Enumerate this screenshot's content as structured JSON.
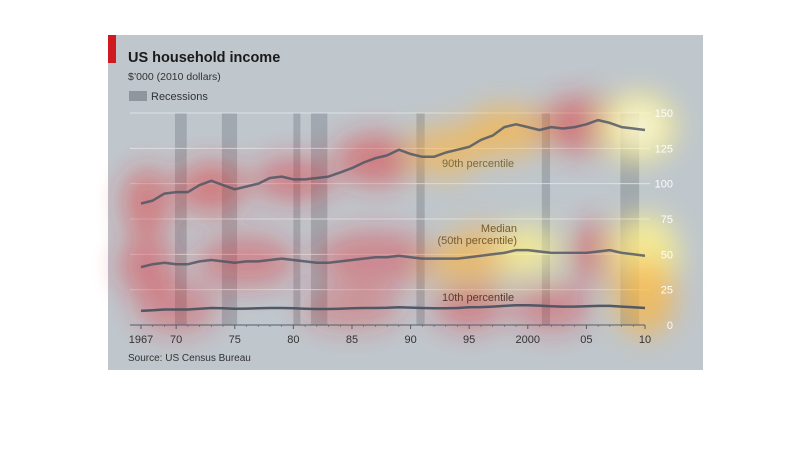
{
  "header": {
    "title": "US household income",
    "subtitle": "$’000 (2010 dollars)",
    "legend_label": "Recessions",
    "source": "Source: US Census Bureau"
  },
  "colors": {
    "background": "#bfc6cc",
    "accent_red": "#cf1b20",
    "gridline": "#e6e9ec",
    "recession_band": "#949ba3",
    "line": "#4a5361",
    "heat_hot": "#fff48a",
    "heat_warm": "#ffb43a",
    "heat_red": "#e3242b"
  },
  "chart_data": {
    "type": "line",
    "x": [
      1967,
      1968,
      1969,
      1970,
      1971,
      1972,
      1973,
      1974,
      1975,
      1976,
      1977,
      1978,
      1979,
      1980,
      1981,
      1982,
      1983,
      1984,
      1985,
      1986,
      1987,
      1988,
      1989,
      1990,
      1991,
      1992,
      1993,
      1994,
      1995,
      1996,
      1997,
      1998,
      1999,
      2000,
      2001,
      2002,
      2003,
      2004,
      2005,
      2006,
      2007,
      2008,
      2009,
      2010
    ],
    "xlim": [
      1966,
      2011
    ],
    "ylim": [
      0,
      150
    ],
    "y_ticks": [
      0,
      25,
      50,
      75,
      100,
      125,
      150
    ],
    "y_tick_labels": [
      "0",
      "25",
      "50",
      "75",
      "100",
      "125",
      "150"
    ],
    "x_ticks": [
      1967,
      1970,
      1975,
      1980,
      1985,
      1990,
      1995,
      2000,
      2005,
      2010
    ],
    "x_tick_labels": [
      "1967",
      "70",
      "75",
      "80",
      "85",
      "90",
      "95",
      "2000",
      "05",
      "10"
    ],
    "y_axis_position": "right",
    "grid": true,
    "recessions": [
      [
        1969.9,
        1970.9
      ],
      [
        1973.9,
        1975.2
      ],
      [
        1980.0,
        1980.6
      ],
      [
        1981.5,
        1982.9
      ],
      [
        1990.5,
        1991.2
      ],
      [
        2001.2,
        2001.9
      ],
      [
        2007.9,
        2009.5
      ]
    ],
    "series": [
      {
        "name": "90th percentile",
        "values": [
          86,
          88,
          93,
          94,
          94,
          99,
          102,
          99,
          96,
          98,
          100,
          104,
          105,
          103,
          103,
          104,
          105,
          108,
          111,
          115,
          118,
          120,
          124,
          121,
          119,
          119,
          122,
          124,
          126,
          131,
          134,
          140,
          142,
          140,
          138,
          140,
          139,
          140,
          142,
          145,
          143,
          140,
          139,
          138
        ]
      },
      {
        "name": "Median (50th percentile)",
        "values": [
          41,
          43,
          44,
          43,
          43,
          45,
          46,
          45,
          44,
          45,
          45,
          46,
          47,
          46,
          45,
          44,
          44,
          45,
          46,
          47,
          48,
          48,
          49,
          48,
          47,
          47,
          47,
          47,
          48,
          49,
          50,
          51,
          53,
          53,
          52,
          51,
          51,
          51,
          51,
          52,
          53,
          51,
          50,
          49
        ]
      },
      {
        "name": "10th percentile",
        "values": [
          10,
          10.5,
          11,
          11,
          11,
          11.5,
          12,
          11.8,
          11.5,
          11.6,
          11.8,
          12,
          12,
          11.8,
          11.5,
          11.3,
          11.3,
          11.5,
          11.8,
          12,
          12,
          12.2,
          12.5,
          12.3,
          12,
          11.8,
          11.8,
          12,
          12.5,
          12.7,
          13,
          13.5,
          14,
          14,
          13.7,
          13.3,
          13,
          13,
          13.2,
          13.5,
          13.5,
          13,
          12.5,
          12
        ]
      }
    ],
    "annotations": [
      "90th percentile",
      "Median",
      "(50th percentile)",
      "10th percentile"
    ]
  }
}
